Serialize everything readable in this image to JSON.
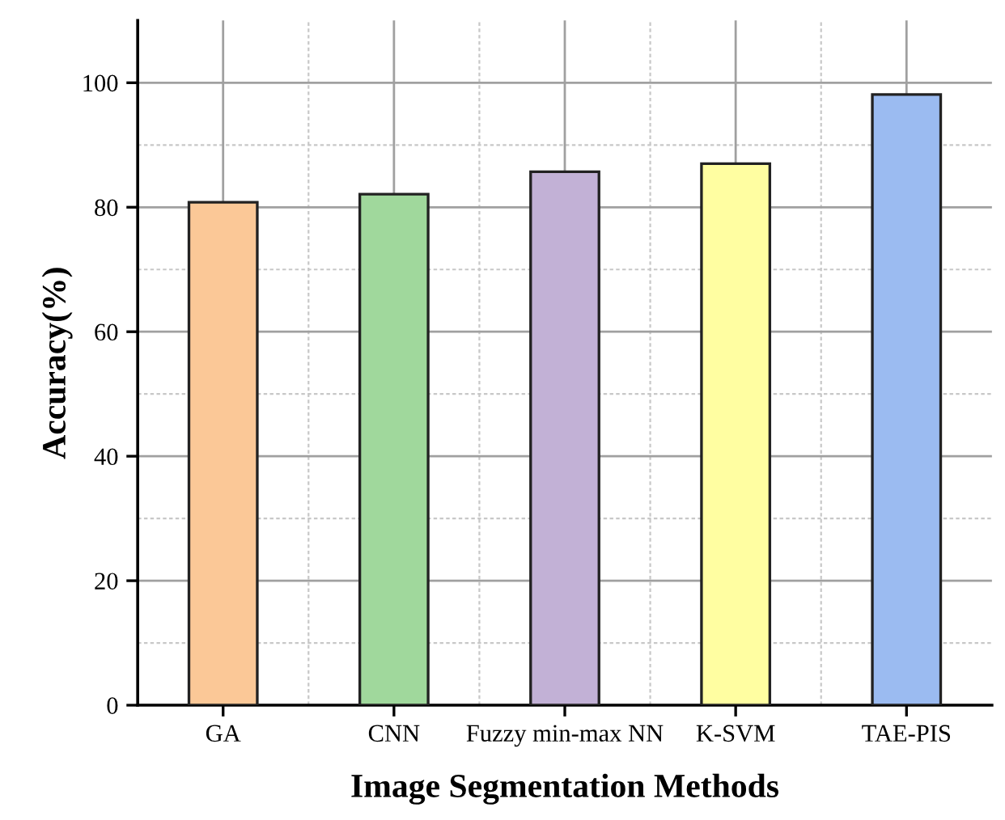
{
  "chart_data": {
    "type": "bar",
    "xlabel": "Image Segmentation Methods",
    "ylabel": "Accuracy(%)",
    "categories": [
      "GA",
      "CNN",
      "Fuzzy min-max NN",
      "K-SVM",
      "TAE-PIS"
    ],
    "values": [
      80.8,
      82.1,
      85.7,
      87.0,
      98.1
    ],
    "colors": [
      "#fbc897",
      "#a0d89c",
      "#c2b1d6",
      "#fffea1",
      "#9bbbf1"
    ],
    "ylim": [
      0,
      110
    ],
    "yticks": [
      0,
      20,
      40,
      60,
      80,
      100
    ],
    "grid": true
  }
}
